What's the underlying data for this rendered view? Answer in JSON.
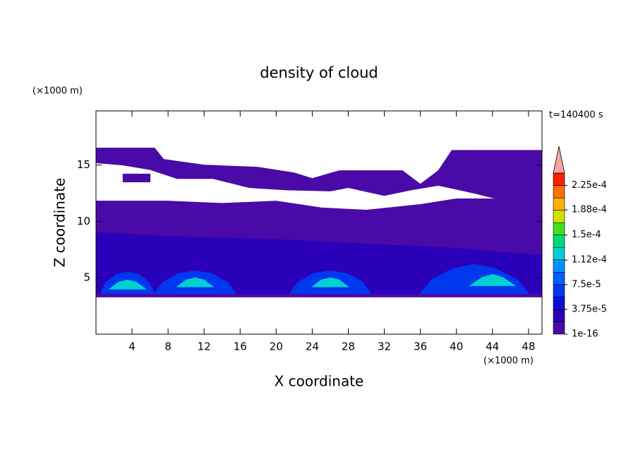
{
  "chart_data": {
    "type": "contour",
    "title": "density of cloud",
    "x_label": "X coordinate",
    "y_label": "Z coordinate",
    "x_unit": "(×1000 m)",
    "y_unit": "(×1000 m)",
    "annotation": "t=140400 s",
    "xlim": [
      0,
      49.5
    ],
    "ylim": [
      0,
      19.8
    ],
    "xticks": [
      4,
      8,
      12,
      16,
      20,
      24,
      28,
      32,
      36,
      40,
      44,
      48
    ],
    "yticks": [
      5,
      10,
      15
    ],
    "colorbar": {
      "levels": [
        1e-16,
        1.875e-05,
        3.75e-05,
        5.625e-05,
        7.5e-05,
        9.375e-05,
        0.0001125,
        0.00013125,
        0.00015,
        0.00016875,
        0.0001875,
        0.00020625,
        0.000225,
        0.00024375
      ],
      "colors": [
        "#4a0aa8",
        "#2a00b8",
        "#0a10d8",
        "#0038f0",
        "#0060ff",
        "#0090ff",
        "#00d0d0",
        "#00d880",
        "#40e020",
        "#d0e000",
        "#ffb000",
        "#ff7000",
        "#ff2000"
      ],
      "extend_color": "#f4a6a6",
      "ticks": [
        {
          "value": 1e-16,
          "label": "1e-16"
        },
        {
          "value": 3.75e-05,
          "label": "3.75e-5"
        },
        {
          "value": 7.5e-05,
          "label": "7.5e-5"
        },
        {
          "value": 0.000112,
          "label": "1.12e-4"
        },
        {
          "value": 0.00015,
          "label": "1.5e-4"
        },
        {
          "value": 0.000188,
          "label": "1.88e-4"
        },
        {
          "value": 0.000225,
          "label": "2.25e-4"
        }
      ]
    },
    "regions": [
      {
        "value": 1e-16,
        "x": [
          0,
          49.5,
          49.5,
          44,
          40,
          36,
          30,
          25,
          20,
          14,
          8,
          0
        ],
        "z": [
          3.3,
          3.3,
          11.5,
          12,
          12,
          11.5,
          11,
          11.2,
          11.8,
          11.6,
          11.8,
          11.8
        ]
      },
      {
        "value": 1e-16,
        "x": [
          0,
          0,
          6.5,
          7.5,
          12,
          18,
          22,
          24,
          27,
          34,
          36,
          38,
          39.5,
          49.5,
          49.5,
          46,
          42,
          38,
          35,
          32,
          28,
          26,
          21,
          17,
          13,
          9,
          6,
          3
        ],
        "z": [
          15.2,
          16.5,
          16.5,
          15.5,
          15,
          14.8,
          14.3,
          13.8,
          14.5,
          14.5,
          13.3,
          14.5,
          16.3,
          16.3,
          11.5,
          11.7,
          12.5,
          13.2,
          12.8,
          12.3,
          13,
          12.7,
          12.8,
          13,
          13.8,
          13.8,
          14.6,
          15
        ]
      },
      {
        "value": 1e-16,
        "x": [
          3,
          6,
          6,
          3
        ],
        "z": [
          13.5,
          13.5,
          14.2,
          14.2
        ]
      },
      {
        "value": 1.875e-05,
        "x": [
          0,
          49.5,
          49.5,
          40,
          30,
          20,
          10,
          0
        ],
        "z": [
          3.6,
          3.6,
          7,
          7.6,
          8,
          8.4,
          8.6,
          9
        ]
      },
      {
        "value": 5.625e-05,
        "x": [
          0.5,
          1.1,
          2.3,
          3.5,
          4.7,
          5.9,
          6.5
        ],
        "z": [
          3.6,
          4.6,
          5.3,
          5.5,
          5.3,
          4.6,
          3.6
        ]
      },
      {
        "value": 5.625e-05,
        "x": [
          6.5,
          7.4,
          9.2,
          11,
          12.8,
          14.6,
          15.5
        ],
        "z": [
          3.6,
          4.6,
          5.4,
          5.6,
          5.4,
          4.6,
          3.6
        ]
      },
      {
        "value": 5.625e-05,
        "x": [
          21.5,
          22.4,
          24.2,
          26,
          27.8,
          29.6,
          30.5
        ],
        "z": [
          3.6,
          4.6,
          5.4,
          5.6,
          5.4,
          4.6,
          3.6
        ]
      },
      {
        "value": 5.625e-05,
        "x": [
          36,
          37.2,
          39.6,
          42,
          44.4,
          46.8,
          48
        ],
        "z": [
          3.6,
          4.8,
          5.8,
          6.2,
          5.8,
          4.8,
          3.6
        ]
      },
      {
        "value": 0.0001125,
        "x": [
          1.5,
          2.5,
          3.5,
          4.5,
          5.5
        ],
        "z": [
          4,
          4.6,
          4.8,
          4.6,
          4
        ]
      },
      {
        "value": 0.0001125,
        "x": [
          9,
          10,
          11,
          12,
          13
        ],
        "z": [
          4.2,
          4.8,
          5,
          4.8,
          4.2
        ]
      },
      {
        "value": 0.0001125,
        "x": [
          24,
          25,
          26,
          27,
          28
        ],
        "z": [
          4.2,
          4.8,
          5,
          4.8,
          4.2
        ]
      },
      {
        "value": 0.0001125,
        "x": [
          41.5,
          42.8,
          44,
          45.2,
          46.5
        ],
        "z": [
          4.3,
          5,
          5.3,
          5,
          4.3
        ]
      }
    ]
  }
}
